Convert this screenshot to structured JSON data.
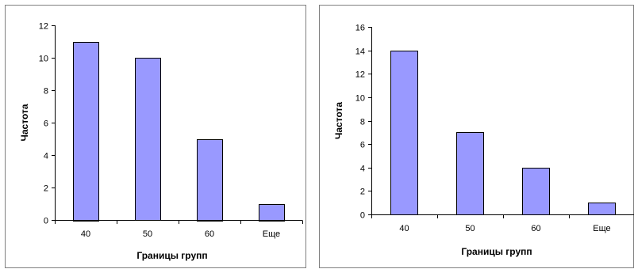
{
  "chart_data": [
    {
      "type": "bar",
      "categories": [
        "40",
        "50",
        "60",
        "Еще"
      ],
      "values": [
        11,
        10,
        5,
        1
      ],
      "title": "",
      "xlabel": "Границы групп",
      "ylabel": "Частота",
      "ylim": [
        0,
        12
      ],
      "yticks": [
        0,
        2,
        4,
        6,
        8,
        10,
        12
      ],
      "grid": false,
      "legend": "none",
      "bar_color": "#9999ff",
      "border_color": "#000000"
    },
    {
      "type": "bar",
      "categories": [
        "40",
        "50",
        "60",
        "Еще"
      ],
      "values": [
        14,
        7,
        4,
        1
      ],
      "title": "",
      "xlabel": "Границы групп",
      "ylabel": "Частота",
      "ylim": [
        0,
        16
      ],
      "yticks": [
        0,
        2,
        4,
        6,
        8,
        10,
        12,
        14,
        16
      ],
      "grid": false,
      "legend": "none",
      "bar_color": "#9999ff",
      "border_color": "#000000"
    }
  ]
}
